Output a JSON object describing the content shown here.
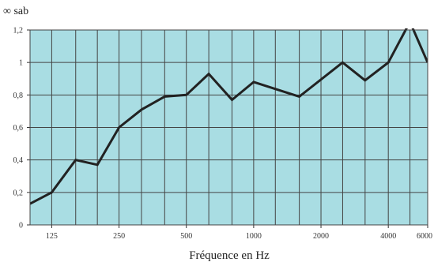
{
  "chart_data": {
    "type": "line",
    "title": "",
    "ylabel": "∞ sab",
    "xlabel": "Fréquence en Hz",
    "x_scale": "log",
    "xlim": [
      100,
      6000
    ],
    "ylim": [
      0,
      1.2
    ],
    "y_ticks": [
      0,
      0.2,
      0.4,
      0.6,
      0.8,
      1,
      1.2
    ],
    "y_tick_labels": [
      "0",
      "0,2",
      "0,4",
      "0,6",
      "0,8",
      "1",
      "1,2"
    ],
    "x_ticks": [
      125,
      250,
      500,
      1000,
      2000,
      4000,
      6000
    ],
    "x_tick_labels": [
      "125",
      "250",
      "500",
      "1000",
      "2000",
      "4000",
      "6000"
    ],
    "grid": true,
    "colors": {
      "plot_background": "#a9dde3",
      "grid": "#444444",
      "line": "#222222"
    },
    "series": [
      {
        "x": [
          100,
          125,
          160,
          200,
          250,
          315,
          400,
          500,
          630,
          800,
          1000,
          1600,
          2500,
          3150,
          4000,
          5000,
          6000
        ],
        "y": [
          0.13,
          0.2,
          0.4,
          0.37,
          0.6,
          0.71,
          0.79,
          0.8,
          0.93,
          0.77,
          0.88,
          0.79,
          1.0,
          0.89,
          1.0,
          1.25,
          1.0
        ]
      }
    ]
  }
}
